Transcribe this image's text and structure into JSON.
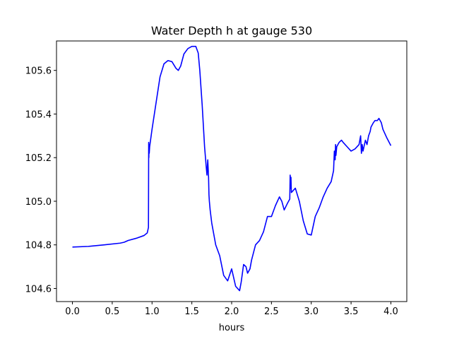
{
  "chart_data": {
    "type": "line",
    "title": "Water Depth h at gauge 530",
    "xlabel": "hours",
    "ylabel": "",
    "xlim": [
      -0.2,
      4.2
    ],
    "ylim": [
      104.54,
      105.735
    ],
    "xticks": [
      0.0,
      0.5,
      1.0,
      1.5,
      2.0,
      2.5,
      3.0,
      3.5,
      4.0
    ],
    "xtick_labels": [
      "0.0",
      "0.5",
      "1.0",
      "1.5",
      "2.0",
      "2.5",
      "3.0",
      "3.5",
      "4.0"
    ],
    "yticks": [
      104.6,
      104.8,
      105.0,
      105.2,
      105.4,
      105.6
    ],
    "ytick_labels": [
      "104.6",
      "104.8",
      "105.0",
      "105.2",
      "105.4",
      "105.6"
    ],
    "grid": false,
    "series": [
      {
        "color": "#0000ff",
        "x": [
          0.0,
          0.2,
          0.4,
          0.6,
          0.65,
          0.7,
          0.8,
          0.9,
          0.94,
          0.955,
          0.958,
          0.96,
          0.962,
          0.965,
          0.97,
          1.0,
          1.05,
          1.1,
          1.15,
          1.2,
          1.25,
          1.3,
          1.33,
          1.36,
          1.4,
          1.45,
          1.5,
          1.55,
          1.58,
          1.6,
          1.63,
          1.66,
          1.68,
          1.69,
          1.7,
          1.71,
          1.715,
          1.72,
          1.73,
          1.75,
          1.8,
          1.85,
          1.9,
          1.95,
          2.0,
          2.05,
          2.1,
          2.12,
          2.15,
          2.18,
          2.2,
          2.23,
          2.25,
          2.3,
          2.35,
          2.4,
          2.45,
          2.5,
          2.55,
          2.6,
          2.63,
          2.66,
          2.7,
          2.73,
          2.735,
          2.74,
          2.745,
          2.75,
          2.8,
          2.85,
          2.9,
          2.95,
          3.0,
          3.05,
          3.1,
          3.15,
          3.2,
          3.25,
          3.28,
          3.29,
          3.3,
          3.305,
          3.31,
          3.32,
          3.35,
          3.38,
          3.4,
          3.45,
          3.5,
          3.55,
          3.6,
          3.61,
          3.62,
          3.63,
          3.635,
          3.64,
          3.65,
          3.68,
          3.7,
          3.72,
          3.74,
          3.75,
          3.78,
          3.8,
          3.83,
          3.85,
          3.88,
          3.9,
          3.95,
          4.0
        ],
        "y": [
          104.79,
          104.793,
          104.8,
          104.808,
          104.812,
          104.82,
          104.83,
          104.843,
          104.855,
          104.88,
          105.27,
          105.2,
          105.26,
          105.22,
          105.25,
          105.33,
          105.45,
          105.57,
          105.63,
          105.645,
          105.64,
          105.61,
          105.6,
          105.62,
          105.675,
          105.7,
          105.71,
          105.71,
          105.68,
          105.6,
          105.44,
          105.25,
          105.16,
          105.12,
          105.19,
          105.11,
          105.03,
          105.0,
          104.96,
          104.9,
          104.8,
          104.75,
          104.66,
          104.635,
          104.69,
          104.61,
          104.59,
          104.63,
          104.71,
          104.7,
          104.67,
          104.69,
          104.73,
          104.8,
          104.82,
          104.86,
          104.93,
          104.93,
          104.98,
          105.02,
          105.0,
          104.96,
          104.99,
          105.01,
          105.12,
          105.06,
          105.11,
          105.04,
          105.06,
          105.0,
          104.91,
          104.85,
          104.845,
          104.93,
          104.97,
          105.02,
          105.06,
          105.09,
          105.14,
          105.23,
          105.19,
          105.26,
          105.21,
          105.25,
          105.27,
          105.28,
          105.27,
          105.25,
          105.23,
          105.24,
          105.26,
          105.28,
          105.3,
          105.22,
          105.24,
          105.26,
          105.23,
          105.28,
          105.26,
          105.3,
          105.32,
          105.34,
          105.36,
          105.37,
          105.37,
          105.38,
          105.36,
          105.33,
          105.29,
          105.255
        ]
      }
    ]
  }
}
